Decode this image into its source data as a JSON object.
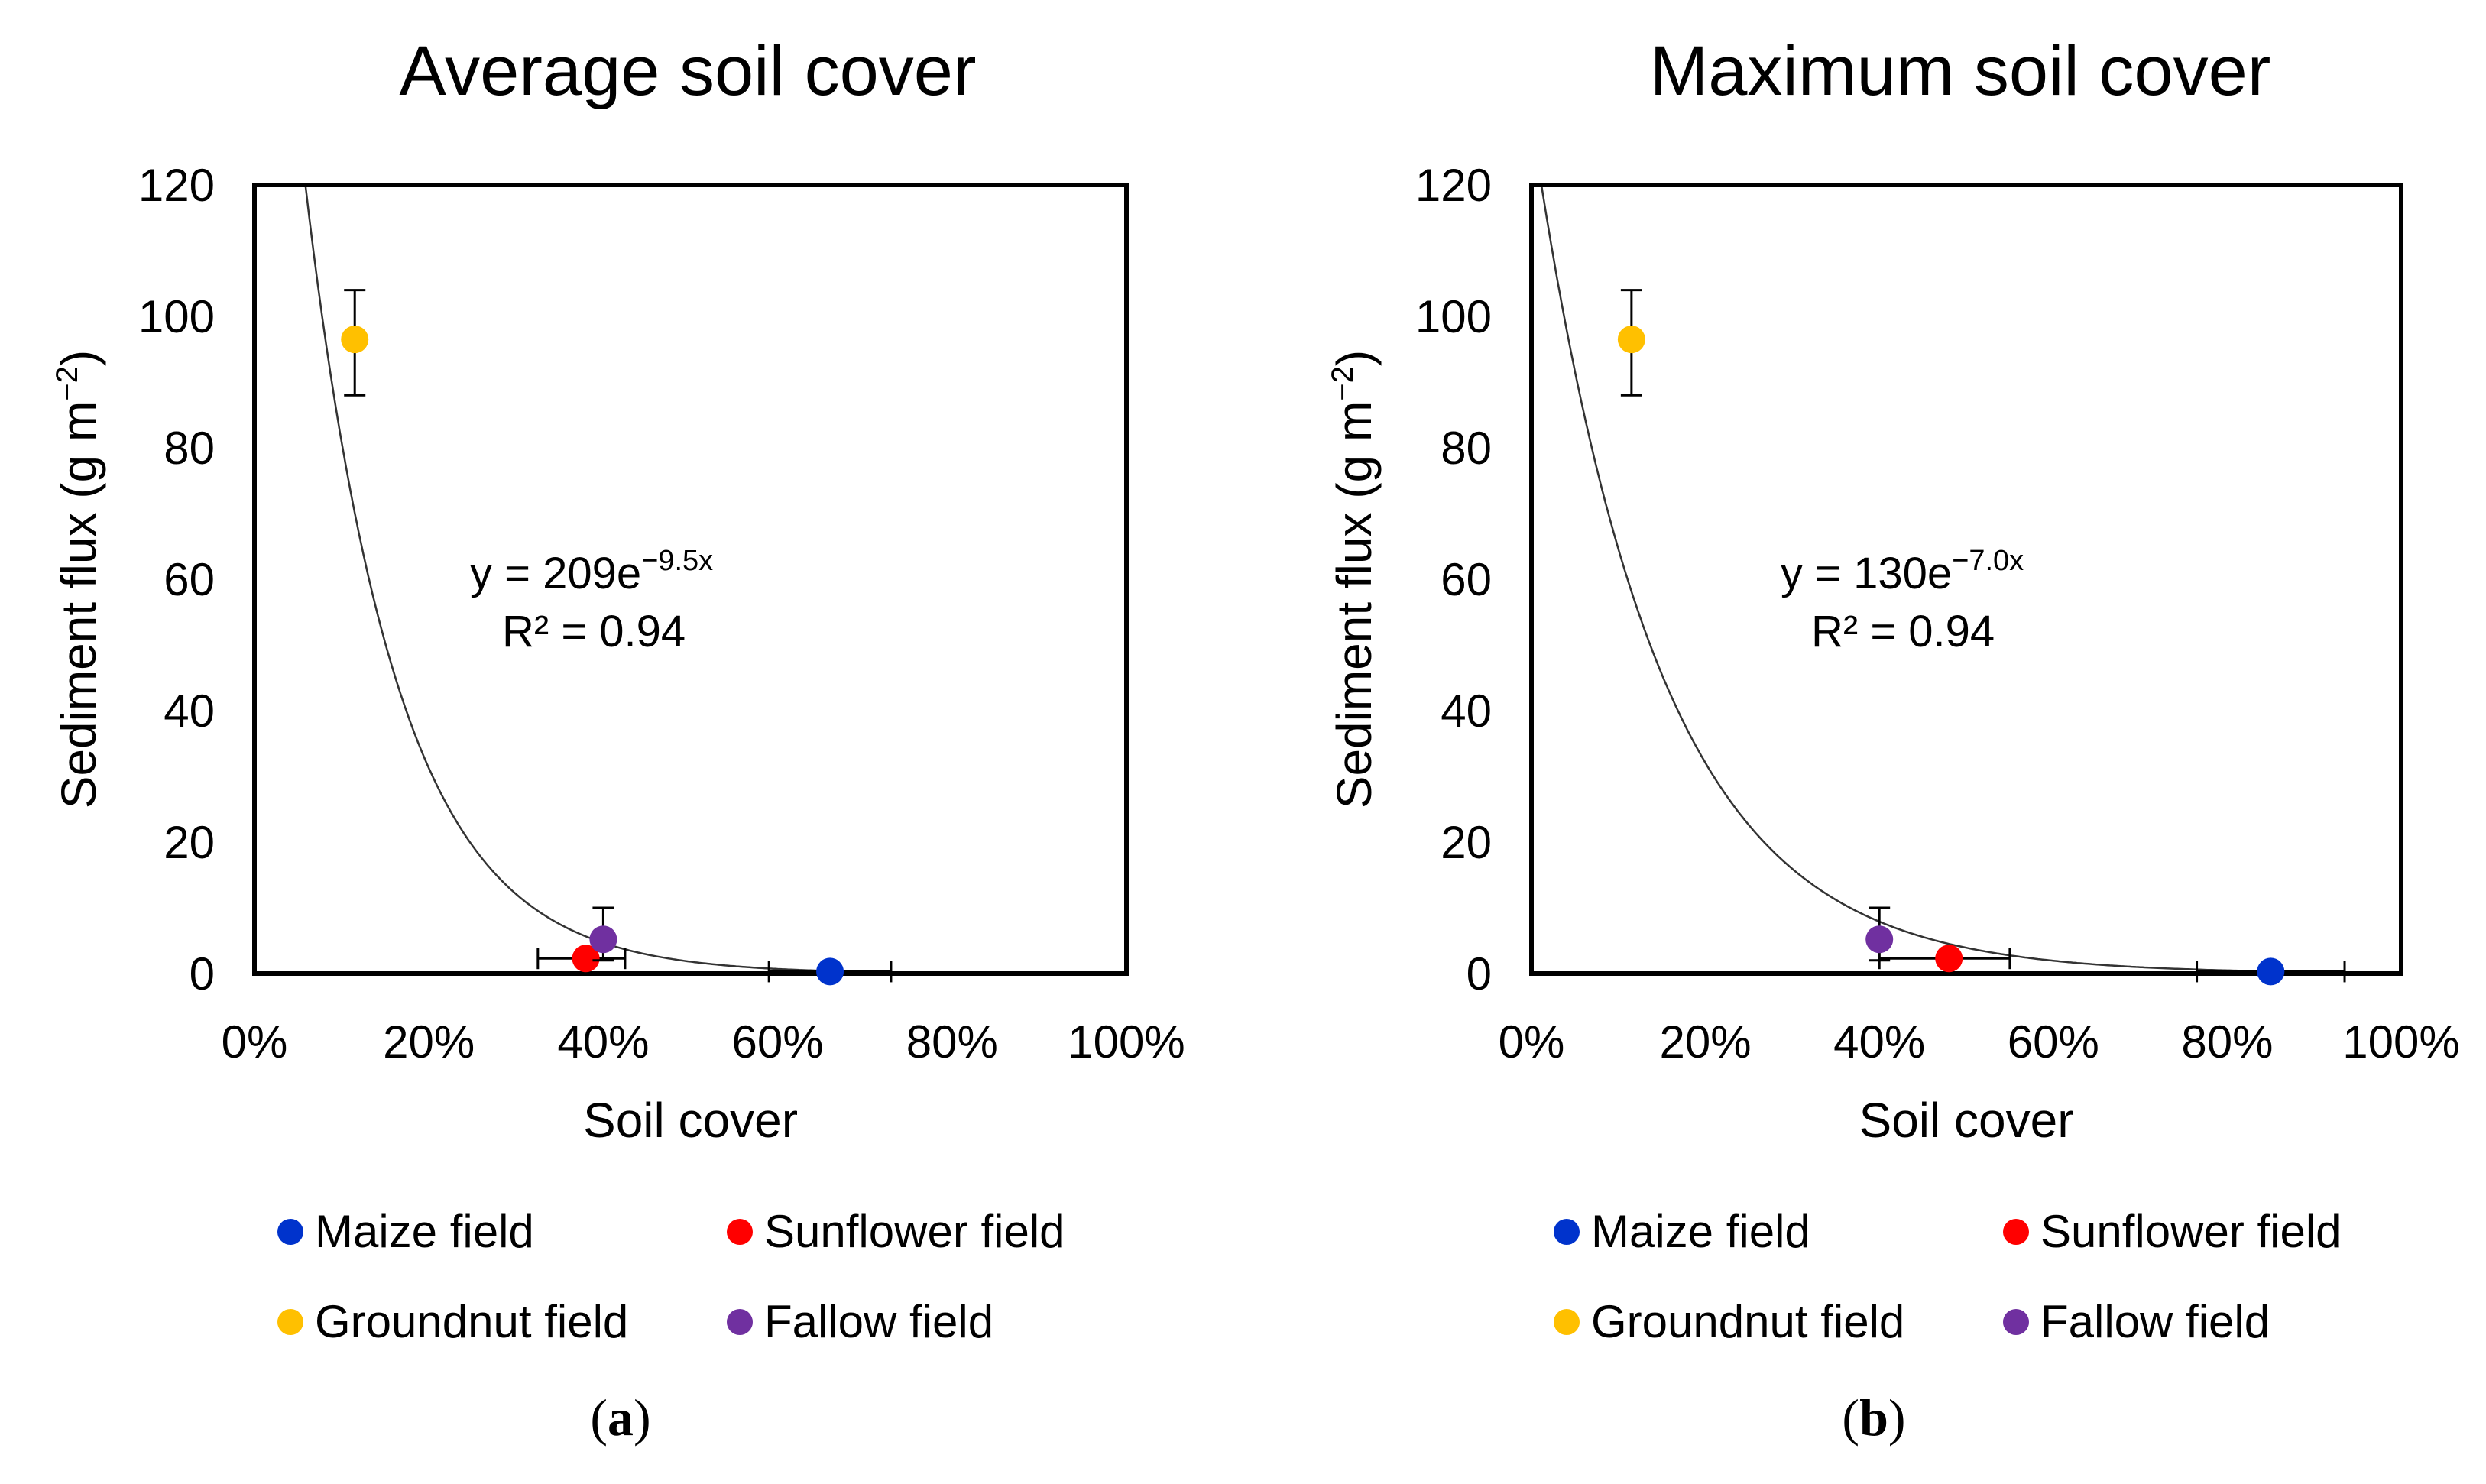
{
  "colors": {
    "maize": "#0033cc",
    "sunflower": "#ff0000",
    "groundnut": "#ffc000",
    "fallow": "#7030a0",
    "axis": "#000000",
    "curve": "#333333"
  },
  "chart_data": [
    {
      "type": "scatter",
      "title": "Average soil cover",
      "xlabel": "Soil cover",
      "ylabel": "Sediment flux (g m",
      "ylabel_sup": "−2",
      "ylabel_close": ")",
      "xlim": [
        0,
        1
      ],
      "ylim": [
        0,
        120
      ],
      "xticks": [
        0,
        0.2,
        0.4,
        0.6,
        0.8,
        1.0
      ],
      "xtick_labels": [
        "0%",
        "20%",
        "40%",
        "60%",
        "80%",
        "100%"
      ],
      "yticks": [
        0,
        20,
        40,
        60,
        80,
        100,
        120
      ],
      "ytick_labels": [
        "0",
        "20",
        "40",
        "60",
        "80",
        "100",
        "120"
      ],
      "series": [
        {
          "name": "Maize field",
          "color_key": "maize",
          "x": 0.66,
          "y": 0.3,
          "xerr": [
            0.59,
            0.73
          ],
          "yerr": null
        },
        {
          "name": "Sunflower field",
          "color_key": "sunflower",
          "x": 0.38,
          "y": 2.3,
          "xerr": [
            0.325,
            0.425
          ],
          "yerr": null
        },
        {
          "name": "Groundnut field",
          "color_key": "groundnut",
          "x": 0.115,
          "y": 96.5,
          "xerr": null,
          "yerr": [
            88,
            104
          ]
        },
        {
          "name": "Fallow field",
          "color_key": "fallow",
          "x": 0.4,
          "y": 5.2,
          "xerr": null,
          "yerr": [
            2,
            10
          ]
        }
      ],
      "fit": {
        "a": 209,
        "b": 9.5,
        "x_min": 0.0,
        "x_max": 1.0
      },
      "equation_main": "y = 209e",
      "equation_exp": "−9.5x",
      "r2_text": "R² = 0.94",
      "panel_open": "(",
      "panel_letter": "a",
      "panel_close": ")"
    },
    {
      "type": "scatter",
      "title": "Maximum soil cover",
      "xlabel": "Soil cover",
      "ylabel": "Sediment flux (g m",
      "ylabel_sup": "−2",
      "ylabel_close": ")",
      "xlim": [
        0,
        1
      ],
      "ylim": [
        0,
        120
      ],
      "xticks": [
        0,
        0.2,
        0.4,
        0.6,
        0.8,
        1.0
      ],
      "xtick_labels": [
        "0%",
        "20%",
        "40%",
        "60%",
        "80%",
        "100%"
      ],
      "yticks": [
        0,
        20,
        40,
        60,
        80,
        100,
        120
      ],
      "ytick_labels": [
        "0",
        "20",
        "40",
        "60",
        "80",
        "100",
        "120"
      ],
      "series": [
        {
          "name": "Maize field",
          "color_key": "maize",
          "x": 0.85,
          "y": 0.3,
          "xerr": [
            0.765,
            0.935
          ],
          "yerr": null
        },
        {
          "name": "Sunflower field",
          "color_key": "sunflower",
          "x": 0.48,
          "y": 2.3,
          "xerr": [
            0.4,
            0.55
          ],
          "yerr": null
        },
        {
          "name": "Groundnut field",
          "color_key": "groundnut",
          "x": 0.115,
          "y": 96.5,
          "xerr": null,
          "yerr": [
            88,
            104
          ]
        },
        {
          "name": "Fallow field",
          "color_key": "fallow",
          "x": 0.4,
          "y": 5.2,
          "xerr": null,
          "yerr": [
            2,
            10
          ]
        }
      ],
      "fit": {
        "a": 130,
        "b": 7.0,
        "x_min": 0.0,
        "x_max": 1.0
      },
      "equation_main": "y = 130e",
      "equation_exp": "−7.0x",
      "r2_text": "R² = 0.94",
      "panel_open": "(",
      "panel_letter": "b",
      "panel_close": ")"
    }
  ]
}
